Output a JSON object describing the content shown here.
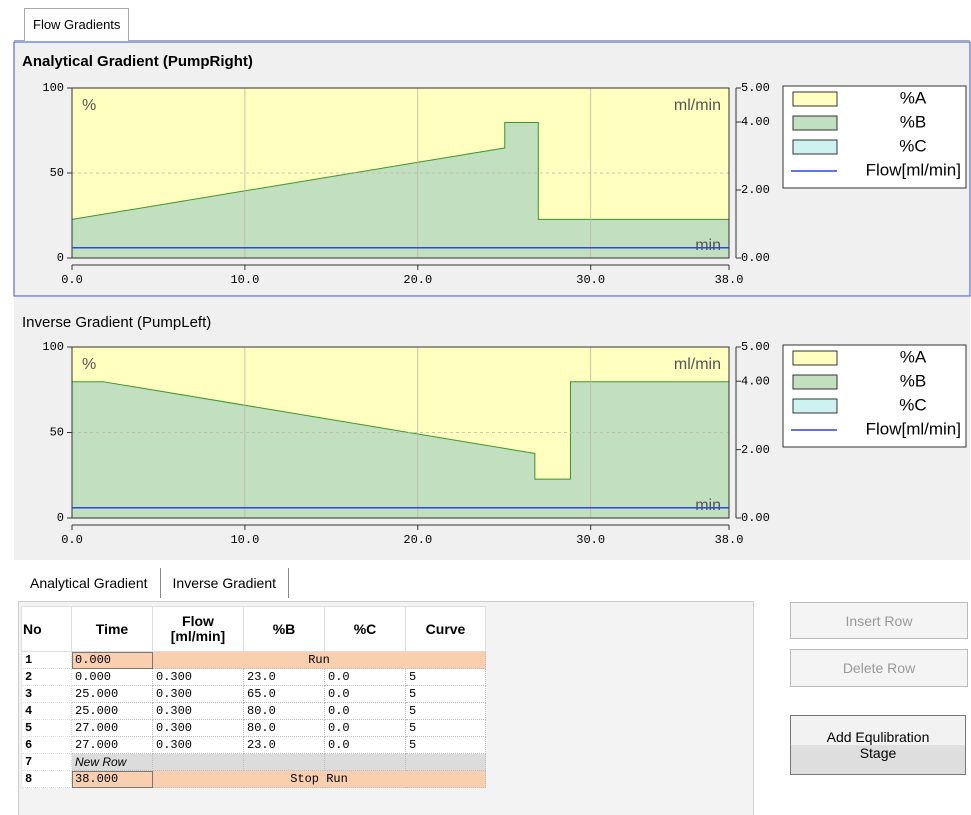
{
  "tab": "Flow Gradients",
  "chart_data": [
    {
      "type": "area",
      "title": "Analytical Gradient (PumpRight)",
      "y_label": "%",
      "y2_label": "ml/min",
      "x_label": "min",
      "x": [
        0,
        25,
        25,
        27,
        27,
        38
      ],
      "xlim": [
        0,
        38
      ],
      "xticks": [
        {
          "value": 0,
          "label": "0.0"
        },
        {
          "value": 10,
          "label": "10.0"
        },
        {
          "value": 20,
          "label": "20.0"
        },
        {
          "value": 30,
          "label": "30.0"
        },
        {
          "value": 38,
          "label": "38.0"
        }
      ],
      "ylim": [
        0,
        100
      ],
      "yticks": [
        0,
        50,
        100
      ],
      "y2lim": [
        0,
        5
      ],
      "y2ticks": [
        {
          "value": 0,
          "label": "0.00"
        },
        {
          "value": 2,
          "label": "2.00"
        },
        {
          "value": 4,
          "label": "4.00"
        },
        {
          "value": 5,
          "label": "5.00"
        }
      ],
      "grid": true,
      "legend": "right",
      "series": [
        {
          "name": "%A",
          "color": "#ffffc0",
          "values": [
            77,
            35,
            20,
            20,
            77,
            77
          ]
        },
        {
          "name": "%B",
          "color": "#c2dfc0",
          "line_color": "#3c9628",
          "values": [
            23,
            65,
            80,
            80,
            23,
            23
          ]
        },
        {
          "name": "%C",
          "color": "#cdf2f0",
          "values": [
            0,
            0,
            0,
            0,
            0,
            0
          ]
        },
        {
          "name": "Flow[ml/min]",
          "color": "#2b47e0",
          "axis": "y2",
          "values": [
            0.3,
            0.3,
            0.3,
            0.3,
            0.3,
            0.3
          ]
        }
      ]
    },
    {
      "type": "area",
      "title": "Inverse Gradient (PumpLeft)",
      "y_label": "%",
      "y2_label": "ml/min",
      "x_label": "min",
      "x": [
        0,
        1.8,
        26.8,
        26.8,
        28.8,
        28.8,
        38
      ],
      "xlim": [
        0,
        38
      ],
      "xticks": [
        {
          "value": 0,
          "label": "0.0"
        },
        {
          "value": 10,
          "label": "10.0"
        },
        {
          "value": 20,
          "label": "20.0"
        },
        {
          "value": 30,
          "label": "30.0"
        },
        {
          "value": 38,
          "label": "38.0"
        }
      ],
      "ylim": [
        0,
        100
      ],
      "yticks": [
        0,
        50,
        100
      ],
      "y2lim": [
        0,
        5
      ],
      "y2ticks": [
        {
          "value": 0,
          "label": "0.00"
        },
        {
          "value": 2,
          "label": "2.00"
        },
        {
          "value": 4,
          "label": "4.00"
        },
        {
          "value": 5,
          "label": "5.00"
        }
      ],
      "grid": true,
      "legend": "right",
      "series": [
        {
          "name": "%A",
          "color": "#ffffc0",
          "values": [
            20,
            20,
            62,
            77,
            77,
            20,
            20
          ]
        },
        {
          "name": "%B",
          "color": "#c2dfc0",
          "line_color": "#3c9628",
          "values": [
            80,
            80,
            38,
            23,
            23,
            80,
            80
          ]
        },
        {
          "name": "%C",
          "color": "#cdf2f0",
          "values": [
            0,
            0,
            0,
            0,
            0,
            0,
            0
          ]
        },
        {
          "name": "Flow[ml/min]",
          "color": "#2b47e0",
          "axis": "y2",
          "values": [
            0.3,
            0.3,
            0.3,
            0.3,
            0.3,
            0.3,
            0.3
          ]
        }
      ]
    }
  ],
  "table_tabs": [
    "Analytical Gradient",
    "Inverse Gradient"
  ],
  "table": {
    "columns": [
      "No",
      "Time",
      "Flow [ml/min]",
      "%B",
      "%C",
      "Curve"
    ],
    "rows": [
      [
        "1",
        "0.000",
        "Run"
      ],
      [
        "2",
        "0.000",
        "0.300",
        "23.0",
        "0.0",
        "5"
      ],
      [
        "3",
        "25.000",
        "0.300",
        "65.0",
        "0.0",
        "5"
      ],
      [
        "4",
        "25.000",
        "0.300",
        "80.0",
        "0.0",
        "5"
      ],
      [
        "5",
        "27.000",
        "0.300",
        "80.0",
        "0.0",
        "5"
      ],
      [
        "6",
        "27.000",
        "0.300",
        "23.0",
        "0.0",
        "5"
      ],
      [
        "7",
        "New Row"
      ],
      [
        "8",
        "38.000",
        "Stop Run"
      ]
    ]
  },
  "buttons": [
    "Insert Row",
    "Delete Row",
    "Add Equlibration Stage"
  ]
}
